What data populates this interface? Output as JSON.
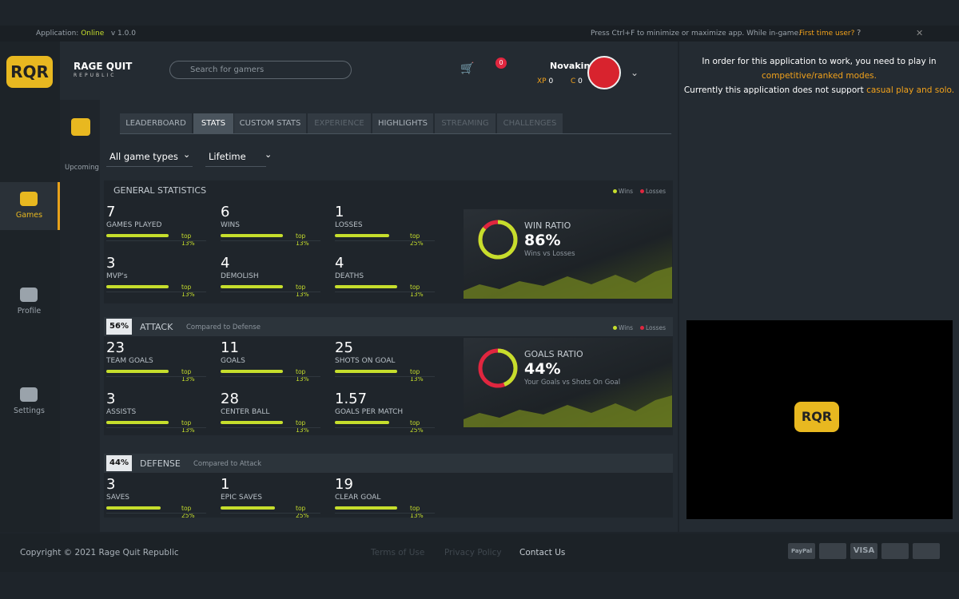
{
  "topbar": {
    "app_label": "Application:",
    "status": "Online",
    "version": "v 1.0.0",
    "hint": "Press Ctrl+F to minimize or maximize app. While in-game.",
    "first_time": "First time user?",
    "help": "?"
  },
  "header": {
    "brand": "RAGE QUIT",
    "brand_sub": "REPUBLIC",
    "search_placeholder": "Search for gamers",
    "notifications": "0",
    "username": "Novakin",
    "xp_label": "XP",
    "xp": "0",
    "c_label": "C",
    "c": "0"
  },
  "sidebar": [
    {
      "label": "Games"
    },
    {
      "label": "Profile"
    },
    {
      "label": "Settings"
    }
  ],
  "subnav": {
    "upcoming": "Upcoming"
  },
  "tabs": [
    "LEADERBOARD",
    "STATS",
    "CUSTOM STATS",
    "EXPERIENCE",
    "HIGHLIGHTS",
    "STREAMING",
    "CHALLENGES"
  ],
  "filters": [
    "All game types",
    "Lifetime"
  ],
  "sections": [
    {
      "title": "GENERAL STATISTICS",
      "legend": [
        "Wins",
        "Losses"
      ],
      "stats": [
        {
          "value": "7",
          "label": "GAMES PLAYED",
          "rank": "top 13%"
        },
        {
          "value": "6",
          "label": "WINS",
          "rank": "top 13%"
        },
        {
          "value": "1",
          "label": "LOSSES",
          "rank": "top 25%"
        },
        {
          "value": "3",
          "label": "MVP's",
          "rank": "top 13%"
        },
        {
          "value": "4",
          "label": "DEMOLISH",
          "rank": "top 13%"
        },
        {
          "value": "4",
          "label": "DEATHS",
          "rank": "top 13%"
        }
      ],
      "ratio": {
        "title": "WIN RATIO",
        "value": "86%",
        "subtitle": "Wins vs Losses"
      }
    },
    {
      "badge": "56%",
      "title": "ATTACK",
      "subtitle": "Compared to Defense",
      "legend": [
        "Wins",
        "Losses"
      ],
      "stats": [
        {
          "value": "23",
          "label": "TEAM GOALS",
          "rank": "top 13%"
        },
        {
          "value": "11",
          "label": "GOALS",
          "rank": "top 13%"
        },
        {
          "value": "25",
          "label": "SHOTS ON GOAL",
          "rank": "top 13%"
        },
        {
          "value": "3",
          "label": "ASSISTS",
          "rank": "top 13%"
        },
        {
          "value": "28",
          "label": "CENTER BALL",
          "rank": "top 13%"
        },
        {
          "value": "1.57",
          "label": "GOALS PER MATCH",
          "rank": "top 25%"
        }
      ],
      "ratio": {
        "title": "GOALS RATIO",
        "value": "44%",
        "subtitle": "Your Goals vs Shots On Goal"
      }
    },
    {
      "badge": "44%",
      "title": "DEFENSE",
      "subtitle": "Compared to Attack",
      "stats": [
        {
          "value": "3",
          "label": "SAVES",
          "rank": "top 25%"
        },
        {
          "value": "1",
          "label": "EPIC SAVES",
          "rank": "top 25%"
        },
        {
          "value": "19",
          "label": "CLEAR GOAL",
          "rank": "top 13%"
        }
      ]
    }
  ],
  "notice": {
    "line1": "In order for this application to work, you need to play in",
    "link1": "competitive/ranked modes.",
    "line2": "Currently this application does not support",
    "link2": "casual play and solo."
  },
  "footer": {
    "copyright": "Copyright © 2021 Rage Quit Republic",
    "links": [
      "Terms of Use",
      "Privacy Policy",
      "Contact Us"
    ],
    "payments": [
      "PayPal",
      "",
      "VISA",
      "",
      ""
    ]
  }
}
